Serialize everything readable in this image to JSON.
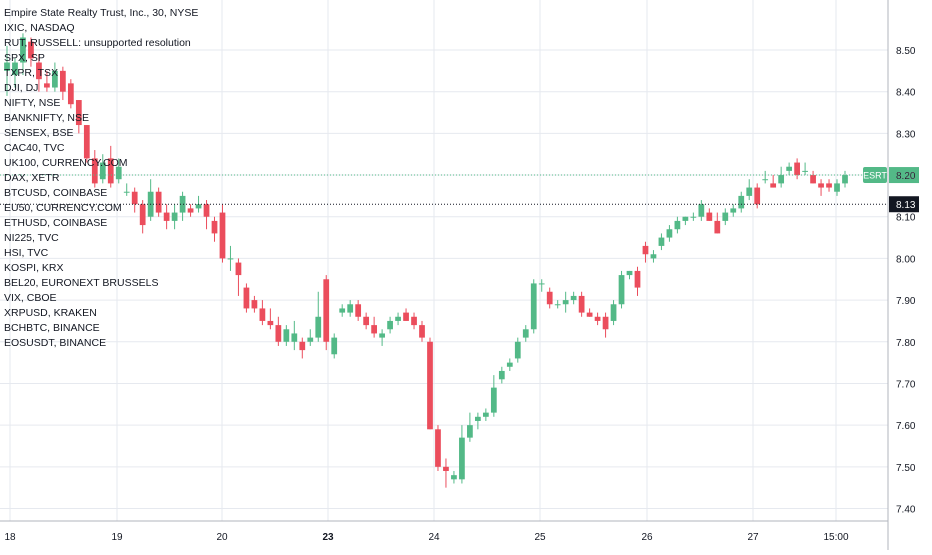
{
  "chart_data": {
    "type": "candlestick",
    "title": "Empire State Realty Trust, Inc., 30, NYSE",
    "symbols": [
      "IXIC, NASDAQ",
      "RUT, RUSSELL: unsupported resolution",
      "SPX, SP",
      "TXPR, TSX",
      "DJI, DJ",
      "NIFTY, NSE",
      "BANKNIFTY, NSE",
      "SENSEX, BSE",
      "CAC40, TVC",
      "UK100, CURRENCY.COM",
      "DAX, XETR",
      "BTCUSD, COINBASE",
      "EU50, CURRENCY.COM",
      "ETHUSD, COINBASE",
      "NI225, TVC",
      "HSI, TVC",
      "KOSPI, KRX",
      "BEL20, EURONEXT BRUSSELS",
      "VIX, CBOE",
      "XRPUSD, KRAKEN",
      "BCHBTC, BINANCE",
      "EOSUSDT, BINANCE"
    ],
    "y_ticks": [
      "8.50",
      "8.40",
      "8.30",
      "8.20",
      "8.10",
      "8.00",
      "7.90",
      "7.80",
      "7.70",
      "7.60",
      "7.50",
      "7.40"
    ],
    "x_ticks": [
      "18",
      "19",
      "20",
      "23",
      "24",
      "25",
      "26",
      "27",
      "15:00"
    ],
    "ylim": [
      7.37,
      8.62
    ],
    "last_price_label": "ESRT",
    "last_price": "8.20",
    "prev_close": "8.13",
    "colors": {
      "up": "#53b987",
      "down": "#eb4d5c",
      "grid": "#e6e9ef",
      "axis_text": "#131722"
    },
    "candles": [
      {
        "o": 8.45,
        "h": 8.51,
        "l": 8.39,
        "c": 8.47
      },
      {
        "o": 8.44,
        "h": 8.48,
        "l": 8.41,
        "c": 8.47
      },
      {
        "o": 8.47,
        "h": 8.54,
        "l": 8.44,
        "c": 8.53
      },
      {
        "o": 8.52,
        "h": 8.53,
        "l": 8.46,
        "c": 8.48
      },
      {
        "o": 8.47,
        "h": 8.49,
        "l": 8.4,
        "c": 8.43
      },
      {
        "o": 8.42,
        "h": 8.45,
        "l": 8.4,
        "c": 8.41
      },
      {
        "o": 8.41,
        "h": 8.47,
        "l": 8.4,
        "c": 8.45
      },
      {
        "o": 8.45,
        "h": 8.46,
        "l": 8.38,
        "c": 8.4
      },
      {
        "o": 8.42,
        "h": 8.43,
        "l": 8.36,
        "c": 8.37
      },
      {
        "o": 8.38,
        "h": 8.38,
        "l": 8.3,
        "c": 8.32
      },
      {
        "o": 8.32,
        "h": 8.32,
        "l": 8.23,
        "c": 8.24
      },
      {
        "o": 8.24,
        "h": 8.26,
        "l": 8.17,
        "c": 8.18
      },
      {
        "o": 8.19,
        "h": 8.25,
        "l": 8.18,
        "c": 8.23
      },
      {
        "o": 8.24,
        "h": 8.27,
        "l": 8.17,
        "c": 8.18
      },
      {
        "o": 8.19,
        "h": 8.24,
        "l": 8.18,
        "c": 8.22
      },
      {
        "o": 8.16,
        "h": 8.18,
        "l": 8.15,
        "c": 8.16
      },
      {
        "o": 8.16,
        "h": 8.17,
        "l": 8.11,
        "c": 8.13
      },
      {
        "o": 8.13,
        "h": 8.14,
        "l": 8.06,
        "c": 8.08
      },
      {
        "o": 8.1,
        "h": 8.19,
        "l": 8.09,
        "c": 8.16
      },
      {
        "o": 8.16,
        "h": 8.17,
        "l": 8.1,
        "c": 8.11
      },
      {
        "o": 8.11,
        "h": 8.13,
        "l": 8.07,
        "c": 8.09
      },
      {
        "o": 8.09,
        "h": 8.13,
        "l": 8.07,
        "c": 8.11
      },
      {
        "o": 8.11,
        "h": 8.16,
        "l": 8.09,
        "c": 8.15
      },
      {
        "o": 8.12,
        "h": 8.13,
        "l": 8.1,
        "c": 8.11
      },
      {
        "o": 8.12,
        "h": 8.15,
        "l": 8.11,
        "c": 8.13
      },
      {
        "o": 8.13,
        "h": 8.14,
        "l": 8.07,
        "c": 8.1
      },
      {
        "o": 8.09,
        "h": 8.1,
        "l": 8.04,
        "c": 8.06
      },
      {
        "o": 8.11,
        "h": 8.13,
        "l": 7.99,
        "c": 8.0
      },
      {
        "o": 8.0,
        "h": 8.03,
        "l": 7.97,
        "c": 8.0
      },
      {
        "o": 7.99,
        "h": 8.0,
        "l": 7.91,
        "c": 7.96
      },
      {
        "o": 7.93,
        "h": 7.94,
        "l": 7.87,
        "c": 7.88
      },
      {
        "o": 7.9,
        "h": 7.91,
        "l": 7.87,
        "c": 7.88
      },
      {
        "o": 7.88,
        "h": 7.9,
        "l": 7.84,
        "c": 7.85
      },
      {
        "o": 7.85,
        "h": 7.88,
        "l": 7.83,
        "c": 7.84
      },
      {
        "o": 7.84,
        "h": 7.86,
        "l": 7.79,
        "c": 7.8
      },
      {
        "o": 7.8,
        "h": 7.84,
        "l": 7.79,
        "c": 7.83
      },
      {
        "o": 7.8,
        "h": 7.85,
        "l": 7.78,
        "c": 7.82
      },
      {
        "o": 7.8,
        "h": 7.81,
        "l": 7.76,
        "c": 7.78
      },
      {
        "o": 7.8,
        "h": 7.83,
        "l": 7.79,
        "c": 7.81
      },
      {
        "o": 7.81,
        "h": 7.92,
        "l": 7.8,
        "c": 7.86
      },
      {
        "o": 7.95,
        "h": 7.96,
        "l": 7.78,
        "c": 7.8
      },
      {
        "o": 7.77,
        "h": 7.82,
        "l": 7.76,
        "c": 7.81
      },
      {
        "o": 7.87,
        "h": 7.89,
        "l": 7.86,
        "c": 7.88
      },
      {
        "o": 7.87,
        "h": 7.9,
        "l": 7.86,
        "c": 7.89
      },
      {
        "o": 7.89,
        "h": 7.9,
        "l": 7.85,
        "c": 7.86
      },
      {
        "o": 7.86,
        "h": 7.87,
        "l": 7.83,
        "c": 7.84
      },
      {
        "o": 7.84,
        "h": 7.86,
        "l": 7.81,
        "c": 7.82
      },
      {
        "o": 7.81,
        "h": 7.83,
        "l": 7.79,
        "c": 7.82
      },
      {
        "o": 7.83,
        "h": 7.86,
        "l": 7.82,
        "c": 7.85
      },
      {
        "o": 7.85,
        "h": 7.87,
        "l": 7.84,
        "c": 7.86
      },
      {
        "o": 7.87,
        "h": 7.88,
        "l": 7.85,
        "c": 7.85
      },
      {
        "o": 7.86,
        "h": 7.87,
        "l": 7.83,
        "c": 7.84
      },
      {
        "o": 7.84,
        "h": 7.85,
        "l": 7.8,
        "c": 7.81
      },
      {
        "o": 7.8,
        "h": 7.81,
        "l": 7.59,
        "c": 7.59
      },
      {
        "o": 7.59,
        "h": 7.6,
        "l": 7.49,
        "c": 7.5
      },
      {
        "o": 7.5,
        "h": 7.52,
        "l": 7.45,
        "c": 7.49
      },
      {
        "o": 7.47,
        "h": 7.49,
        "l": 7.46,
        "c": 7.48
      },
      {
        "o": 7.47,
        "h": 7.6,
        "l": 7.46,
        "c": 7.57
      },
      {
        "o": 7.57,
        "h": 7.63,
        "l": 7.56,
        "c": 7.6
      },
      {
        "o": 7.61,
        "h": 7.63,
        "l": 7.59,
        "c": 7.62
      },
      {
        "o": 7.62,
        "h": 7.64,
        "l": 7.61,
        "c": 7.63
      },
      {
        "o": 7.63,
        "h": 7.72,
        "l": 7.62,
        "c": 7.69
      },
      {
        "o": 7.71,
        "h": 7.74,
        "l": 7.7,
        "c": 7.73
      },
      {
        "o": 7.74,
        "h": 7.76,
        "l": 7.73,
        "c": 7.75
      },
      {
        "o": 7.76,
        "h": 7.81,
        "l": 7.75,
        "c": 7.8
      },
      {
        "o": 7.81,
        "h": 7.84,
        "l": 7.8,
        "c": 7.83
      },
      {
        "o": 7.83,
        "h": 7.95,
        "l": 7.82,
        "c": 7.94
      },
      {
        "o": 7.94,
        "h": 7.95,
        "l": 7.92,
        "c": 7.94
      },
      {
        "o": 7.92,
        "h": 7.93,
        "l": 7.88,
        "c": 7.89
      },
      {
        "o": 7.89,
        "h": 7.9,
        "l": 7.88,
        "c": 7.89
      },
      {
        "o": 7.89,
        "h": 7.92,
        "l": 7.87,
        "c": 7.9
      },
      {
        "o": 7.9,
        "h": 7.92,
        "l": 7.89,
        "c": 7.91
      },
      {
        "o": 7.91,
        "h": 7.92,
        "l": 7.86,
        "c": 7.87
      },
      {
        "o": 7.87,
        "h": 7.88,
        "l": 7.86,
        "c": 7.86
      },
      {
        "o": 7.86,
        "h": 7.87,
        "l": 7.84,
        "c": 7.85
      },
      {
        "o": 7.86,
        "h": 7.87,
        "l": 7.81,
        "c": 7.83
      },
      {
        "o": 7.85,
        "h": 7.9,
        "l": 7.84,
        "c": 7.89
      },
      {
        "o": 7.89,
        "h": 7.97,
        "l": 7.88,
        "c": 7.96
      },
      {
        "o": 7.96,
        "h": 7.97,
        "l": 7.95,
        "c": 7.97
      },
      {
        "o": 7.97,
        "h": 7.98,
        "l": 7.91,
        "c": 7.93
      },
      {
        "o": 8.03,
        "h": 8.04,
        "l": 7.99,
        "c": 8.01
      },
      {
        "o": 8.0,
        "h": 8.02,
        "l": 7.99,
        "c": 8.01
      },
      {
        "o": 8.03,
        "h": 8.06,
        "l": 8.02,
        "c": 8.05
      },
      {
        "o": 8.05,
        "h": 8.08,
        "l": 8.04,
        "c": 8.07
      },
      {
        "o": 8.07,
        "h": 8.1,
        "l": 8.06,
        "c": 8.09
      },
      {
        "o": 8.09,
        "h": 8.1,
        "l": 8.08,
        "c": 8.1
      },
      {
        "o": 8.1,
        "h": 8.11,
        "l": 8.09,
        "c": 8.1
      },
      {
        "o": 8.1,
        "h": 8.14,
        "l": 8.09,
        "c": 8.13
      },
      {
        "o": 8.11,
        "h": 8.12,
        "l": 8.09,
        "c": 8.09
      },
      {
        "o": 8.09,
        "h": 8.11,
        "l": 8.06,
        "c": 8.06
      },
      {
        "o": 8.09,
        "h": 8.12,
        "l": 8.08,
        "c": 8.11
      },
      {
        "o": 8.11,
        "h": 8.13,
        "l": 8.1,
        "c": 8.12
      },
      {
        "o": 8.12,
        "h": 8.16,
        "l": 8.11,
        "c": 8.15
      },
      {
        "o": 8.15,
        "h": 8.19,
        "l": 8.14,
        "c": 8.17
      },
      {
        "o": 8.17,
        "h": 8.18,
        "l": 8.12,
        "c": 8.13
      },
      {
        "o": 8.19,
        "h": 8.21,
        "l": 8.18,
        "c": 8.19
      },
      {
        "o": 8.18,
        "h": 8.2,
        "l": 8.17,
        "c": 8.17
      },
      {
        "o": 8.18,
        "h": 8.22,
        "l": 8.17,
        "c": 8.2
      },
      {
        "o": 8.21,
        "h": 8.23,
        "l": 8.2,
        "c": 8.22
      },
      {
        "o": 8.23,
        "h": 8.24,
        "l": 8.19,
        "c": 8.2
      },
      {
        "o": 8.21,
        "h": 8.23,
        "l": 8.2,
        "c": 8.21
      },
      {
        "o": 8.2,
        "h": 8.21,
        "l": 8.18,
        "c": 8.18
      },
      {
        "o": 8.18,
        "h": 8.19,
        "l": 8.15,
        "c": 8.17
      },
      {
        "o": 8.18,
        "h": 8.19,
        "l": 8.16,
        "c": 8.17
      },
      {
        "o": 8.16,
        "h": 8.19,
        "l": 8.15,
        "c": 8.18
      },
      {
        "o": 8.18,
        "h": 8.21,
        "l": 8.17,
        "c": 8.2
      }
    ]
  }
}
